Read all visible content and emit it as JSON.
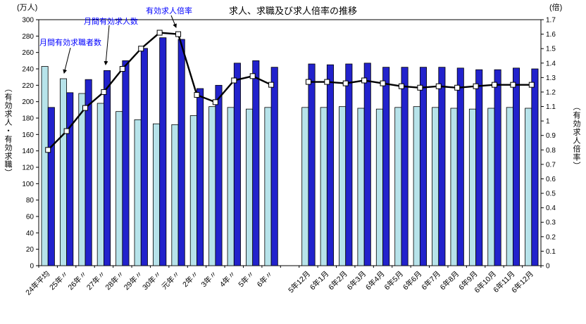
{
  "title": "求人、求職及び求人倍率の推移",
  "axis_units": {
    "left": "(万人)",
    "right": "(倍)"
  },
  "axis_titles": {
    "left": "（有効求人・有効求職）",
    "right": "（有効求人倍率）"
  },
  "annotations": {
    "seekers": "月間有効求職者数",
    "openings": "月間有効求人数",
    "ratio": "有効求人倍率"
  },
  "colors": {
    "openings_bar": "#2222cc",
    "seekers_bar": "#b7e3ea",
    "ratio_line": "#000000",
    "marker_fill": "#ffffff",
    "annotation_text": "#0000ff",
    "axis": "#000000"
  },
  "chart_data": {
    "type": "bar+line",
    "title": "求人、求職及び求人倍率の推移",
    "left_axis": {
      "label": "有効求人・有効求職 (万人)",
      "min": 0,
      "max": 300,
      "step": 20
    },
    "right_axis": {
      "label": "有効求人倍率 (倍)",
      "min": 0,
      "max": 1.7,
      "step": 0.1
    },
    "series_names": {
      "seekers": "月間有効求職者数",
      "openings": "月間有効求人数",
      "ratio": "有効求人倍率"
    },
    "legend_position": "none",
    "grid": false,
    "groups": [
      {
        "categories": [
          "24年平均",
          "25年〃",
          "26年〃",
          "27年〃",
          "28年〃",
          "29年〃",
          "30年〃",
          "元年〃",
          "2年〃",
          "3年〃",
          "4年〃",
          "5年〃",
          "6年〃"
        ],
        "seekers": [
          243,
          228,
          210,
          198,
          188,
          178,
          173,
          172,
          183,
          194,
          193,
          191,
          193
        ],
        "openings": [
          193,
          211,
          227,
          238,
          250,
          265,
          278,
          276,
          216,
          220,
          247,
          250,
          242
        ],
        "ratio": [
          0.8,
          0.93,
          1.09,
          1.2,
          1.36,
          1.5,
          1.61,
          1.6,
          1.18,
          1.13,
          1.28,
          1.31,
          1.25
        ]
      },
      {
        "categories": [
          "5年12月",
          "6年1月",
          "6年2月",
          "6年3月",
          "6年4月",
          "6年5月",
          "6年6月",
          "6年7月",
          "6年8月",
          "6年9月",
          "6年10月",
          "6年11月",
          "6年12月"
        ],
        "seekers": [
          193,
          193,
          194,
          192,
          191,
          193,
          194,
          193,
          192,
          191,
          192,
          193,
          192
        ],
        "openings": [
          246,
          245,
          246,
          247,
          242,
          242,
          242,
          242,
          241,
          239,
          239,
          241,
          240
        ],
        "ratio": [
          1.27,
          1.27,
          1.26,
          1.28,
          1.26,
          1.24,
          1.23,
          1.24,
          1.23,
          1.24,
          1.25,
          1.25,
          1.25
        ]
      }
    ]
  }
}
